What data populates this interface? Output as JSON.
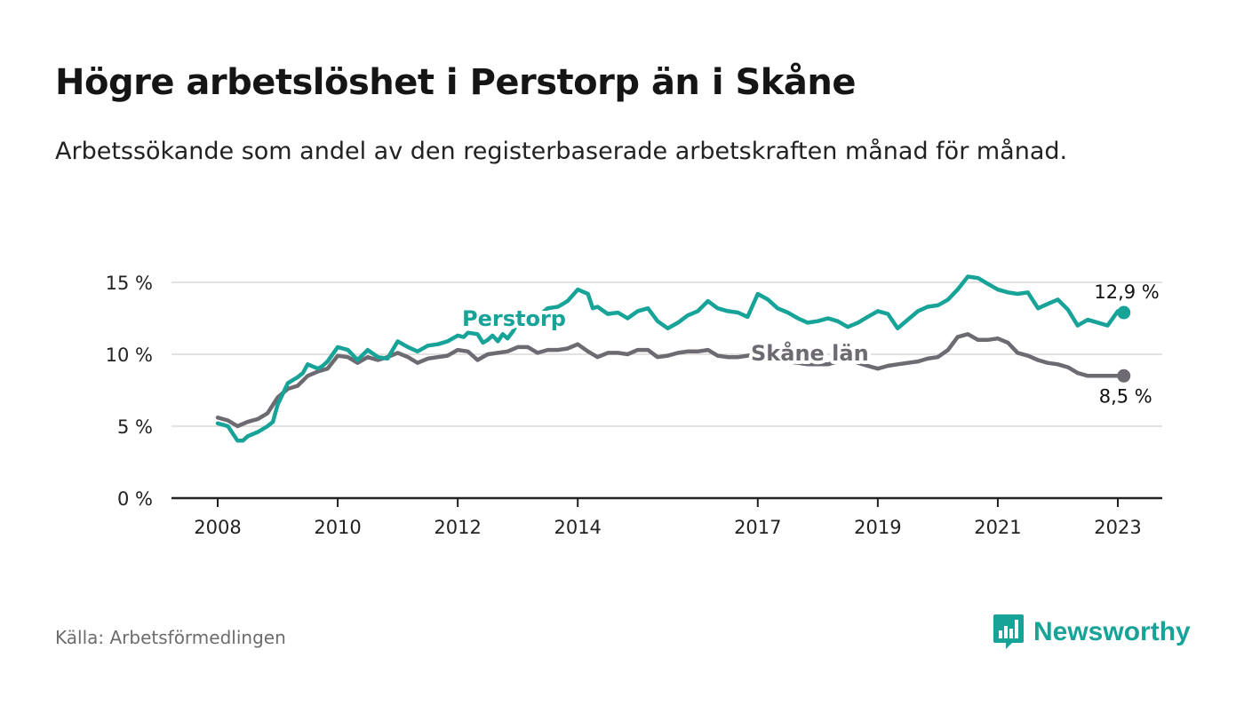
{
  "header": {
    "title": "Högre arbetslöshet i Perstorp än i Skåne",
    "subtitle": "Arbetssökande som andel av den registerbaserade arbetskraften månad för månad."
  },
  "footer": {
    "source": "Källa: Arbetsförmedlingen",
    "brand": "Newsworthy"
  },
  "colors": {
    "perstorp": "#17a398",
    "skane": "#6e6a72",
    "grid": "#d9d9d9",
    "axis": "#222222",
    "brand": "#17a398"
  },
  "icons": {
    "brand_logo": "newsworthy-bar-chart-icon"
  },
  "chart_data": {
    "type": "line",
    "title": "Högre arbetslöshet i Perstorp än i Skåne",
    "xlabel": "",
    "ylabel": "",
    "xlim": [
      2008,
      2023.2
    ],
    "ylim": [
      0,
      15
    ],
    "y_ticks": [
      0,
      5,
      10,
      15
    ],
    "y_tick_labels": [
      "0 %",
      "5 %",
      "10 %",
      "15 %"
    ],
    "x_ticks": [
      2008,
      2010,
      2012,
      2014,
      2017,
      2019,
      2021,
      2023
    ],
    "x_tick_labels": [
      "2008",
      "2010",
      "2012",
      "2014",
      "2017",
      "2019",
      "2021",
      "2023"
    ],
    "grid": true,
    "series": [
      {
        "name": "Perstorp",
        "label": "Perstorp",
        "end_label": "12,9 %",
        "x": [
          2008.0,
          2008.17,
          2008.33,
          2008.42,
          2008.5,
          2008.67,
          2008.83,
          2008.92,
          2009.0,
          2009.17,
          2009.33,
          2009.42,
          2009.5,
          2009.67,
          2009.75,
          2009.83,
          2010.0,
          2010.17,
          2010.33,
          2010.5,
          2010.67,
          2010.83,
          2011.0,
          2011.17,
          2011.33,
          2011.5,
          2011.67,
          2011.83,
          2012.0,
          2012.1,
          2012.17,
          2012.33,
          2012.42,
          2012.5,
          2012.58,
          2012.67,
          2012.75,
          2012.83,
          2012.92,
          2013.0,
          2013.17,
          2013.33,
          2013.5,
          2013.67,
          2013.83,
          2014.0,
          2014.17,
          2014.25,
          2014.33,
          2014.5,
          2014.67,
          2014.83,
          2015.0,
          2015.17,
          2015.33,
          2015.5,
          2015.67,
          2015.83,
          2016.0,
          2016.17,
          2016.33,
          2016.5,
          2016.67,
          2016.83,
          2017.0,
          2017.17,
          2017.33,
          2017.5,
          2017.67,
          2017.83,
          2018.0,
          2018.17,
          2018.33,
          2018.5,
          2018.67,
          2018.83,
          2019.0,
          2019.17,
          2019.33,
          2019.5,
          2019.67,
          2019.83,
          2020.0,
          2020.17,
          2020.33,
          2020.5,
          2020.67,
          2020.83,
          2021.0,
          2021.17,
          2021.33,
          2021.5,
          2021.67,
          2021.83,
          2022.0,
          2022.17,
          2022.33,
          2022.5,
          2022.67,
          2022.83,
          2023.0,
          2023.1
        ],
        "values": [
          5.2,
          5.0,
          4.0,
          4.0,
          4.3,
          4.6,
          5.0,
          5.3,
          6.5,
          8.0,
          8.4,
          8.7,
          9.3,
          9.0,
          9.2,
          9.5,
          10.5,
          10.3,
          9.6,
          10.3,
          9.8,
          9.7,
          10.9,
          10.5,
          10.2,
          10.6,
          10.7,
          10.9,
          11.3,
          11.2,
          11.5,
          11.4,
          10.8,
          11.0,
          11.3,
          10.9,
          11.4,
          11.1,
          11.6,
          12.2,
          12.8,
          12.6,
          13.2,
          13.3,
          13.7,
          14.5,
          14.2,
          13.2,
          13.3,
          12.8,
          12.9,
          12.5,
          13.0,
          13.2,
          12.3,
          11.8,
          12.2,
          12.7,
          13.0,
          13.7,
          13.2,
          13.0,
          12.9,
          12.6,
          14.2,
          13.8,
          13.2,
          12.9,
          12.5,
          12.2,
          12.3,
          12.5,
          12.3,
          11.9,
          12.2,
          12.6,
          13.0,
          12.8,
          11.8,
          12.4,
          13.0,
          13.3,
          13.4,
          13.8,
          14.5,
          15.4,
          15.3,
          14.9,
          14.5,
          14.3,
          14.2,
          14.3,
          13.2,
          13.5,
          13.8,
          13.1,
          12.0,
          12.4,
          12.2,
          12.0,
          13.0,
          12.9
        ]
      },
      {
        "name": "Skåne län",
        "label": "Skåne län",
        "end_label": "8,5 %",
        "x": [
          2008.0,
          2008.17,
          2008.33,
          2008.5,
          2008.67,
          2008.83,
          2009.0,
          2009.17,
          2009.33,
          2009.5,
          2009.67,
          2009.83,
          2010.0,
          2010.17,
          2010.33,
          2010.5,
          2010.67,
          2010.83,
          2011.0,
          2011.17,
          2011.33,
          2011.5,
          2011.67,
          2011.83,
          2012.0,
          2012.17,
          2012.33,
          2012.5,
          2012.67,
          2012.83,
          2013.0,
          2013.17,
          2013.33,
          2013.5,
          2013.67,
          2013.83,
          2014.0,
          2014.17,
          2014.33,
          2014.5,
          2014.67,
          2014.83,
          2015.0,
          2015.17,
          2015.33,
          2015.5,
          2015.67,
          2015.83,
          2016.0,
          2016.17,
          2016.33,
          2016.5,
          2016.67,
          2016.83,
          2017.0,
          2017.17,
          2017.33,
          2017.5,
          2017.67,
          2017.83,
          2018.0,
          2018.17,
          2018.33,
          2018.5,
          2018.67,
          2018.83,
          2019.0,
          2019.17,
          2019.33,
          2019.5,
          2019.67,
          2019.83,
          2020.0,
          2020.17,
          2020.33,
          2020.5,
          2020.67,
          2020.83,
          2021.0,
          2021.17,
          2021.33,
          2021.5,
          2021.67,
          2021.83,
          2022.0,
          2022.17,
          2022.33,
          2022.5,
          2022.67,
          2022.83,
          2023.0,
          2023.1
        ],
        "values": [
          5.6,
          5.4,
          5.0,
          5.3,
          5.5,
          5.9,
          7.0,
          7.6,
          7.8,
          8.5,
          8.8,
          9.0,
          9.9,
          9.8,
          9.4,
          9.8,
          9.6,
          9.8,
          10.1,
          9.8,
          9.4,
          9.7,
          9.8,
          9.9,
          10.3,
          10.2,
          9.6,
          10.0,
          10.1,
          10.2,
          10.5,
          10.5,
          10.1,
          10.3,
          10.3,
          10.4,
          10.7,
          10.2,
          9.8,
          10.1,
          10.1,
          10.0,
          10.3,
          10.3,
          9.8,
          9.9,
          10.1,
          10.2,
          10.2,
          10.3,
          9.9,
          9.8,
          9.8,
          9.9,
          10.0,
          9.8,
          9.7,
          9.5,
          9.4,
          9.3,
          9.3,
          9.3,
          9.5,
          9.7,
          9.4,
          9.2,
          9.0,
          9.2,
          9.3,
          9.4,
          9.5,
          9.7,
          9.8,
          10.3,
          11.2,
          11.4,
          11.0,
          11.0,
          11.1,
          10.8,
          10.1,
          9.9,
          9.6,
          9.4,
          9.3,
          9.1,
          8.7,
          8.5,
          8.5,
          8.5,
          8.5,
          8.5
        ]
      }
    ]
  }
}
